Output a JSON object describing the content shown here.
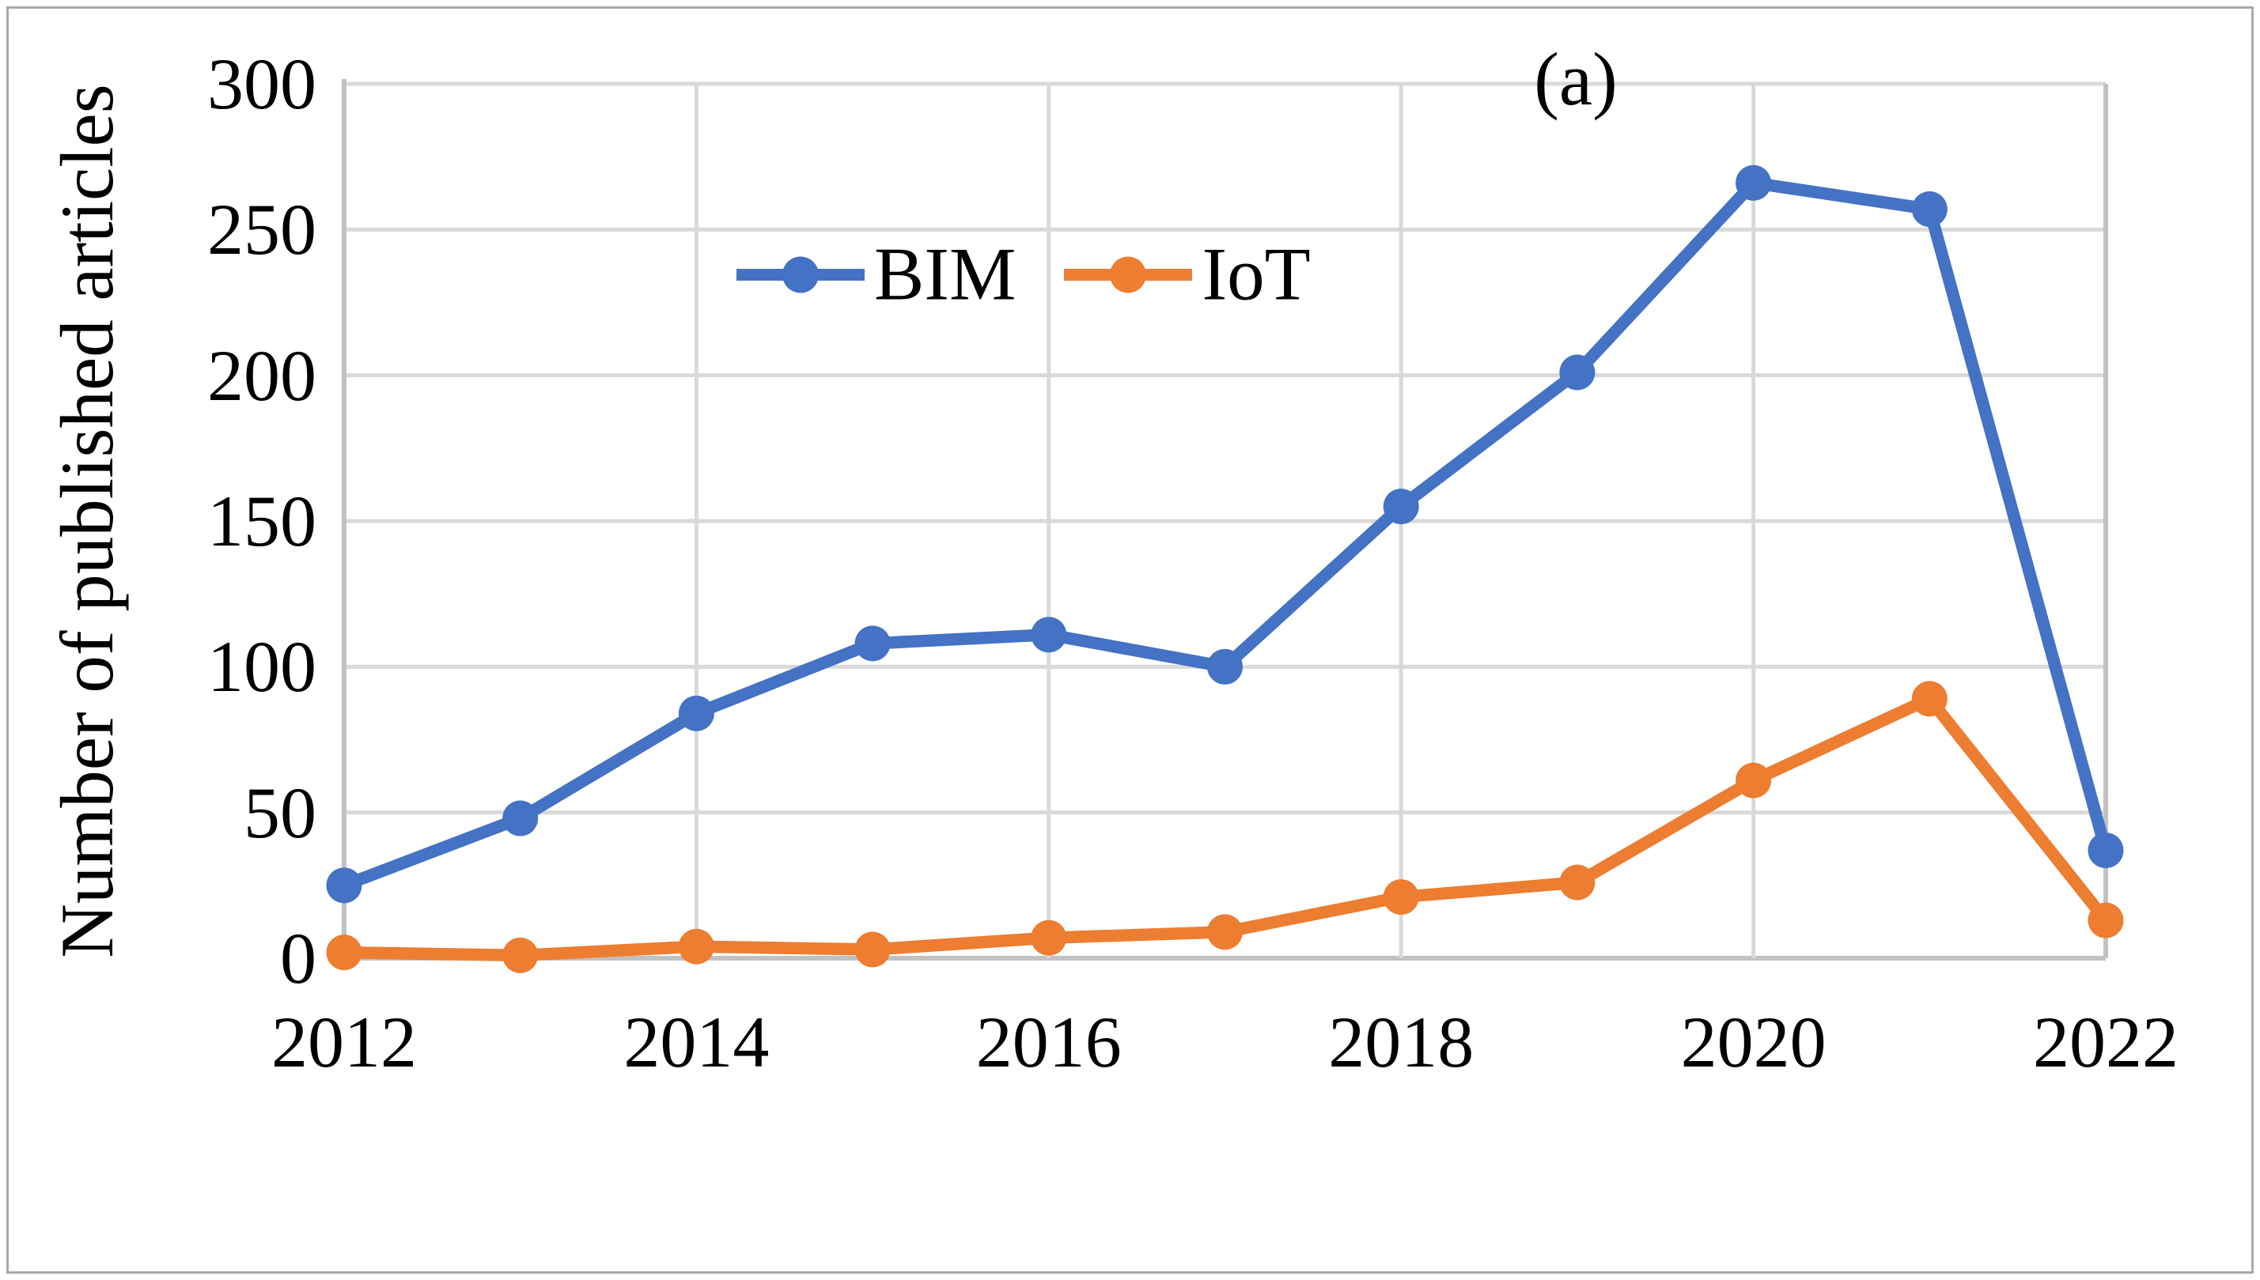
{
  "figure": {
    "background": "#ffffff",
    "border_color": "#a9a9a9"
  },
  "chart_data": {
    "type": "line",
    "title": "",
    "panel_label": "(a)",
    "xlabel": "",
    "ylabel": "Number of published articles",
    "x": [
      2012,
      2013,
      2014,
      2015,
      2016,
      2017,
      2018,
      2019,
      2020,
      2021,
      2022
    ],
    "x_tick_labels": [
      "2012",
      "2014",
      "2016",
      "2018",
      "2020",
      "2022"
    ],
    "x_tick_years": [
      2012,
      2014,
      2016,
      2018,
      2020,
      2022
    ],
    "y_ticks": [
      0,
      50,
      100,
      150,
      200,
      250,
      300
    ],
    "ylim": [
      0,
      300
    ],
    "grid": "horizontal every 50, vertical every 2 years",
    "legend_position": "top-center-inside",
    "series": [
      {
        "name": "BIM",
        "color": "#4472C4",
        "values": [
          25,
          48,
          84,
          108,
          111,
          100,
          155,
          201,
          266,
          257,
          37
        ]
      },
      {
        "name": "IoT",
        "color": "#ED7D31",
        "values": [
          2,
          1,
          4,
          3,
          7,
          9,
          21,
          26,
          61,
          89,
          13
        ]
      }
    ],
    "gridline_color": "#D9D9D9",
    "axis_line_color": "#C1C1C1",
    "text_color": "#000000"
  }
}
